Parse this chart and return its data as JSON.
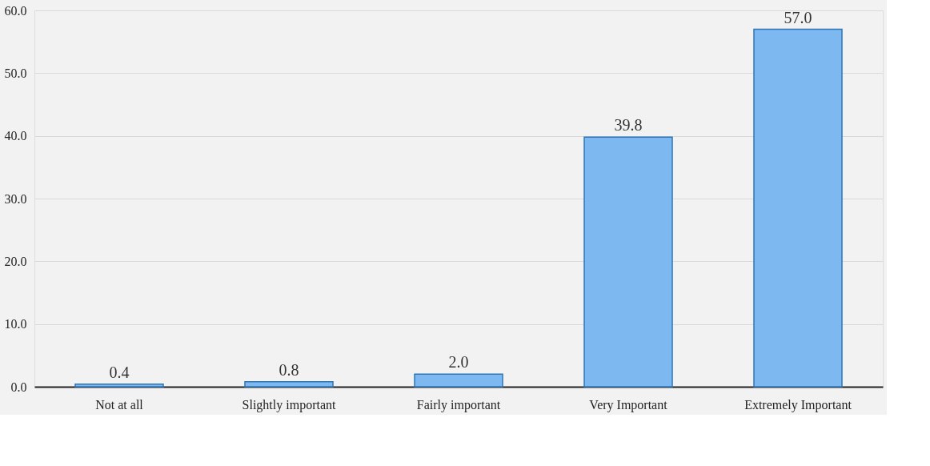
{
  "chart_data": {
    "type": "bar",
    "categories": [
      "Not at all",
      "Slightly important",
      "Fairly important",
      "Very Important",
      "Extremely Important"
    ],
    "values": [
      0.4,
      0.8,
      2.0,
      39.8,
      57.0
    ],
    "value_labels": [
      "0.4",
      "0.8",
      "2.0",
      "39.8",
      "57.0"
    ],
    "color": "#7db9f0",
    "ylim": [
      0,
      60
    ],
    "yticks": [
      {
        "value": 0,
        "label": "0.0"
      },
      {
        "value": 10,
        "label": "10.0"
      },
      {
        "value": 20,
        "label": "20.0"
      },
      {
        "value": 30,
        "label": "30.0"
      },
      {
        "value": 40,
        "label": "40.0"
      },
      {
        "value": 50,
        "label": "50.0"
      },
      {
        "value": 60,
        "label": "60.0"
      }
    ],
    "grid": "y"
  }
}
